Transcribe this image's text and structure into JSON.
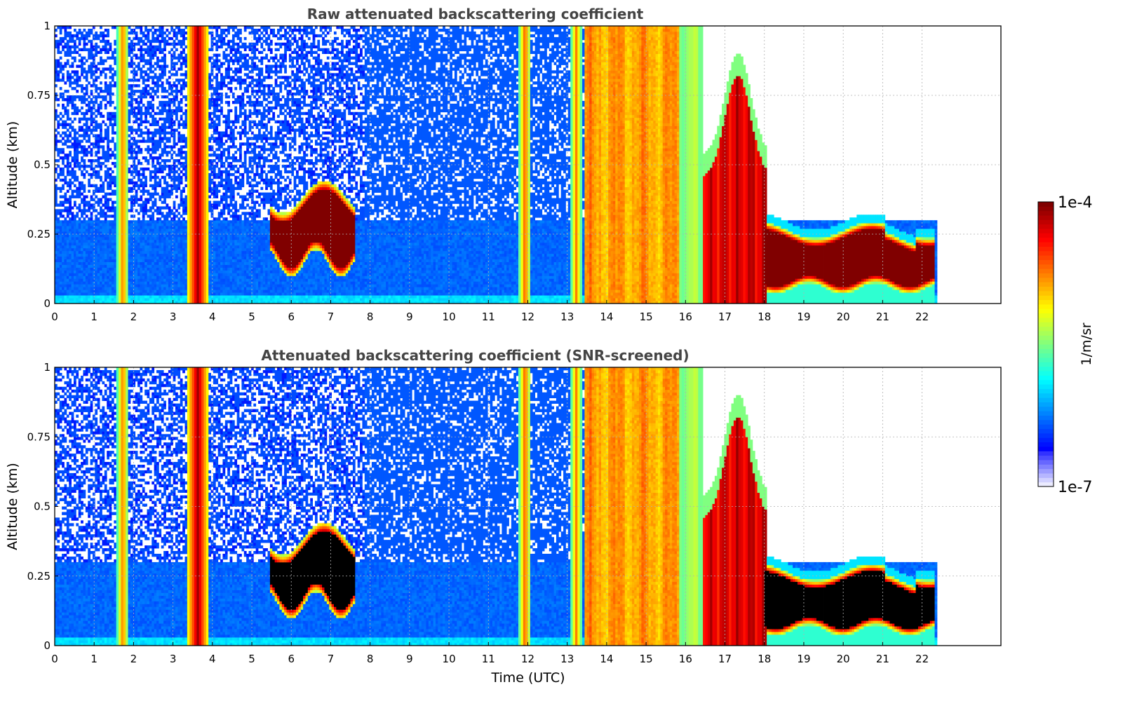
{
  "chart_data": [
    {
      "type": "heatmap",
      "title": "Raw attenuated backscattering coefficient",
      "xlabel": "",
      "ylabel": "Altitude (km)",
      "xlim": [
        0,
        24
      ],
      "ylim": [
        0,
        1
      ],
      "x_ticks": [
        "0",
        "1",
        "2",
        "3",
        "4",
        "5",
        "6",
        "7",
        "8",
        "9",
        "10",
        "11",
        "12",
        "13",
        "14",
        "15",
        "16",
        "17",
        "18",
        "19",
        "20",
        "21",
        "22"
      ],
      "y_ticks": [
        "0",
        "0.25",
        "0.5",
        "0.75",
        "1"
      ],
      "grid": true,
      "data_end_time": 22.35,
      "color_scale": "log",
      "features": [
        {
          "name": "near-surface background",
          "t": [
            0,
            22.3
          ],
          "alt": [
            0,
            0.3
          ],
          "level": 0.22
        },
        {
          "name": "upper noise",
          "t": [
            0,
            7.8
          ],
          "alt": [
            0.3,
            1.0
          ],
          "level": 0.2
        },
        {
          "name": "aerosol layer",
          "t": [
            5.4,
            7.6
          ],
          "alt": [
            0.12,
            0.45
          ],
          "level": 1.0
        },
        {
          "name": "broad column",
          "t": [
            13.4,
            15.8
          ],
          "alt": [
            0,
            1.0
          ],
          "level": 0.72
        },
        {
          "name": "lifting cloud",
          "t": [
            16.4,
            18.0
          ],
          "alt": [
            0,
            0.82
          ],
          "level": 0.95
        },
        {
          "name": "boundary layer cloud",
          "t": [
            18.0,
            22.3
          ],
          "alt": [
            0.05,
            0.28
          ],
          "level": 1.0
        }
      ]
    },
    {
      "type": "heatmap",
      "title": "Attenuated backscattering coefficient (SNR-screened)",
      "xlabel": "Time (UTC)",
      "ylabel": "Altitude (km)",
      "xlim": [
        0,
        24
      ],
      "ylim": [
        0,
        1
      ],
      "x_ticks": [
        "0",
        "1",
        "2",
        "3",
        "4",
        "5",
        "6",
        "7",
        "8",
        "9",
        "10",
        "11",
        "12",
        "13",
        "14",
        "15",
        "16",
        "17",
        "18",
        "19",
        "20",
        "21",
        "22"
      ],
      "y_ticks": [
        "0",
        "0.25",
        "0.5",
        "0.75",
        "1"
      ],
      "grid": true,
      "data_end_time": 22.35,
      "color_scale": "log",
      "saturation_color": "#000000",
      "features": [
        {
          "name": "near-surface background",
          "t": [
            0,
            22.3
          ],
          "alt": [
            0,
            0.25
          ],
          "level": 0.22
        },
        {
          "name": "aerosol layer",
          "t": [
            5.4,
            7.6
          ],
          "alt": [
            0.12,
            0.4
          ],
          "level": 1.0
        },
        {
          "name": "broad column",
          "t": [
            13.4,
            15.8
          ],
          "alt": [
            0,
            1.0
          ],
          "level": 0.72
        },
        {
          "name": "lifting cloud",
          "t": [
            16.4,
            18.0
          ],
          "alt": [
            0,
            0.82
          ],
          "level": 0.95
        },
        {
          "name": "boundary layer cloud",
          "t": [
            18.0,
            22.3
          ],
          "alt": [
            0.05,
            0.26
          ],
          "level": 1.0
        }
      ]
    }
  ],
  "colorbar": {
    "label": "1/m/sr",
    "max_label": "1e-4",
    "min_label": "1e-7",
    "colormap": "jet"
  }
}
